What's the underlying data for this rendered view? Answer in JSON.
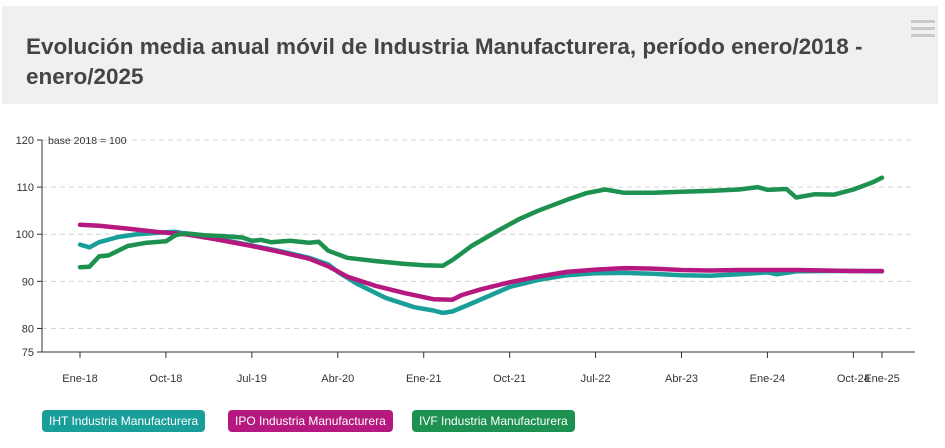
{
  "header": {
    "title": "Evolución media anual móvil de Industria Manufacturera, período enero/2018 - enero/2025",
    "menu_icon": "hamburger-menu-icon"
  },
  "chart_data": {
    "type": "line",
    "annotation": "base 2018 = 100",
    "y_ticks": [
      "120",
      "110",
      "100",
      "90",
      "80",
      "75"
    ],
    "x_ticks": [
      "Ene-18",
      "Oct-18",
      "Jul-19",
      "Abr-20",
      "Ene-21",
      "Oct-21",
      "Jul-22",
      "Abr-23",
      "Ene-24",
      "Oct-24",
      "Ene-25"
    ],
    "x_range": [
      "2018-01",
      "2025-01"
    ],
    "ylim": [
      75,
      120
    ],
    "grid": "horizontal dashed",
    "legend_position": "bottom-left",
    "series": [
      {
        "name": "IHT Industria Manufacturera",
        "color": "#1a9e9a",
        "points": [
          [
            "2018-01",
            97.8
          ],
          [
            "2018-02",
            97.2
          ],
          [
            "2018-03",
            98.3
          ],
          [
            "2018-05",
            99.4
          ],
          [
            "2018-07",
            100.0
          ],
          [
            "2018-10",
            100.4
          ],
          [
            "2018-11",
            100.5
          ],
          [
            "2019-01",
            99.8
          ],
          [
            "2019-04",
            98.8
          ],
          [
            "2019-07",
            97.6
          ],
          [
            "2019-10",
            96.4
          ],
          [
            "2020-01",
            95.0
          ],
          [
            "2020-03",
            93.6
          ],
          [
            "2020-04",
            92.0
          ],
          [
            "2020-06",
            89.5
          ],
          [
            "2020-09",
            86.5
          ],
          [
            "2020-12",
            84.5
          ],
          [
            "2021-02",
            83.8
          ],
          [
            "2021-03",
            83.3
          ],
          [
            "2021-04",
            83.6
          ],
          [
            "2021-06",
            85.3
          ],
          [
            "2021-10",
            88.8
          ],
          [
            "2022-01",
            90.3
          ],
          [
            "2022-04",
            91.3
          ],
          [
            "2022-07",
            91.7
          ],
          [
            "2022-10",
            91.8
          ],
          [
            "2023-01",
            91.6
          ],
          [
            "2023-04",
            91.3
          ],
          [
            "2023-07",
            91.2
          ],
          [
            "2023-10",
            91.5
          ],
          [
            "2024-01",
            91.9
          ],
          [
            "2024-02",
            91.5
          ],
          [
            "2024-04",
            92.1
          ],
          [
            "2024-07",
            92.2
          ],
          [
            "2024-10",
            92.2
          ],
          [
            "2025-01",
            92.1
          ]
        ]
      },
      {
        "name": "IPO Industria Manufacturera",
        "color": "#b5197f",
        "points": [
          [
            "2018-01",
            102.0
          ],
          [
            "2018-03",
            101.8
          ],
          [
            "2018-06",
            101.2
          ],
          [
            "2018-09",
            100.5
          ],
          [
            "2018-12",
            100.0
          ],
          [
            "2019-03",
            99.0
          ],
          [
            "2019-07",
            97.5
          ],
          [
            "2019-10",
            96.2
          ],
          [
            "2020-01",
            94.8
          ],
          [
            "2020-03",
            93.2
          ],
          [
            "2020-05",
            91.0
          ],
          [
            "2020-08",
            89.0
          ],
          [
            "2020-11",
            87.5
          ],
          [
            "2021-02",
            86.2
          ],
          [
            "2021-04",
            86.1
          ],
          [
            "2021-05",
            87.1
          ],
          [
            "2021-07",
            88.3
          ],
          [
            "2021-10",
            89.8
          ],
          [
            "2022-01",
            91.0
          ],
          [
            "2022-04",
            92.0
          ],
          [
            "2022-07",
            92.5
          ],
          [
            "2022-10",
            92.8
          ],
          [
            "2023-01",
            92.7
          ],
          [
            "2023-04",
            92.4
          ],
          [
            "2023-07",
            92.3
          ],
          [
            "2023-10",
            92.4
          ],
          [
            "2024-01",
            92.4
          ],
          [
            "2024-04",
            92.4
          ],
          [
            "2024-07",
            92.3
          ],
          [
            "2024-10",
            92.2
          ],
          [
            "2025-01",
            92.2
          ]
        ]
      },
      {
        "name": "IVF Industria Manufacturera",
        "color": "#1d9150",
        "points": [
          [
            "2018-01",
            93.0
          ],
          [
            "2018-02",
            93.1
          ],
          [
            "2018-03",
            95.3
          ],
          [
            "2018-04",
            95.5
          ],
          [
            "2018-06",
            97.5
          ],
          [
            "2018-08",
            98.2
          ],
          [
            "2018-10",
            98.5
          ],
          [
            "2018-11",
            99.8
          ],
          [
            "2018-12",
            100.2
          ],
          [
            "2019-02",
            99.8
          ],
          [
            "2019-04",
            99.6
          ],
          [
            "2019-06",
            99.3
          ],
          [
            "2019-07",
            98.6
          ],
          [
            "2019-08",
            98.8
          ],
          [
            "2019-09",
            98.3
          ],
          [
            "2019-11",
            98.6
          ],
          [
            "2020-01",
            98.2
          ],
          [
            "2020-02",
            98.4
          ],
          [
            "2020-03",
            96.5
          ],
          [
            "2020-05",
            95.0
          ],
          [
            "2020-08",
            94.3
          ],
          [
            "2020-11",
            93.7
          ],
          [
            "2021-01",
            93.4
          ],
          [
            "2021-03",
            93.3
          ],
          [
            "2021-04",
            94.5
          ],
          [
            "2021-06",
            97.5
          ],
          [
            "2021-09",
            101.0
          ],
          [
            "2021-11",
            103.2
          ],
          [
            "2022-01",
            105.0
          ],
          [
            "2022-04",
            107.3
          ],
          [
            "2022-06",
            108.7
          ],
          [
            "2022-08",
            109.5
          ],
          [
            "2022-10",
            108.8
          ],
          [
            "2023-01",
            108.8
          ],
          [
            "2023-04",
            109.0
          ],
          [
            "2023-07",
            109.2
          ],
          [
            "2023-10",
            109.5
          ],
          [
            "2023-12",
            110.0
          ],
          [
            "2024-01",
            109.4
          ],
          [
            "2024-03",
            109.6
          ],
          [
            "2024-04",
            107.8
          ],
          [
            "2024-06",
            108.5
          ],
          [
            "2024-08",
            108.4
          ],
          [
            "2024-10",
            109.5
          ],
          [
            "2024-12",
            111.0
          ],
          [
            "2025-01",
            112.0
          ]
        ]
      }
    ]
  }
}
